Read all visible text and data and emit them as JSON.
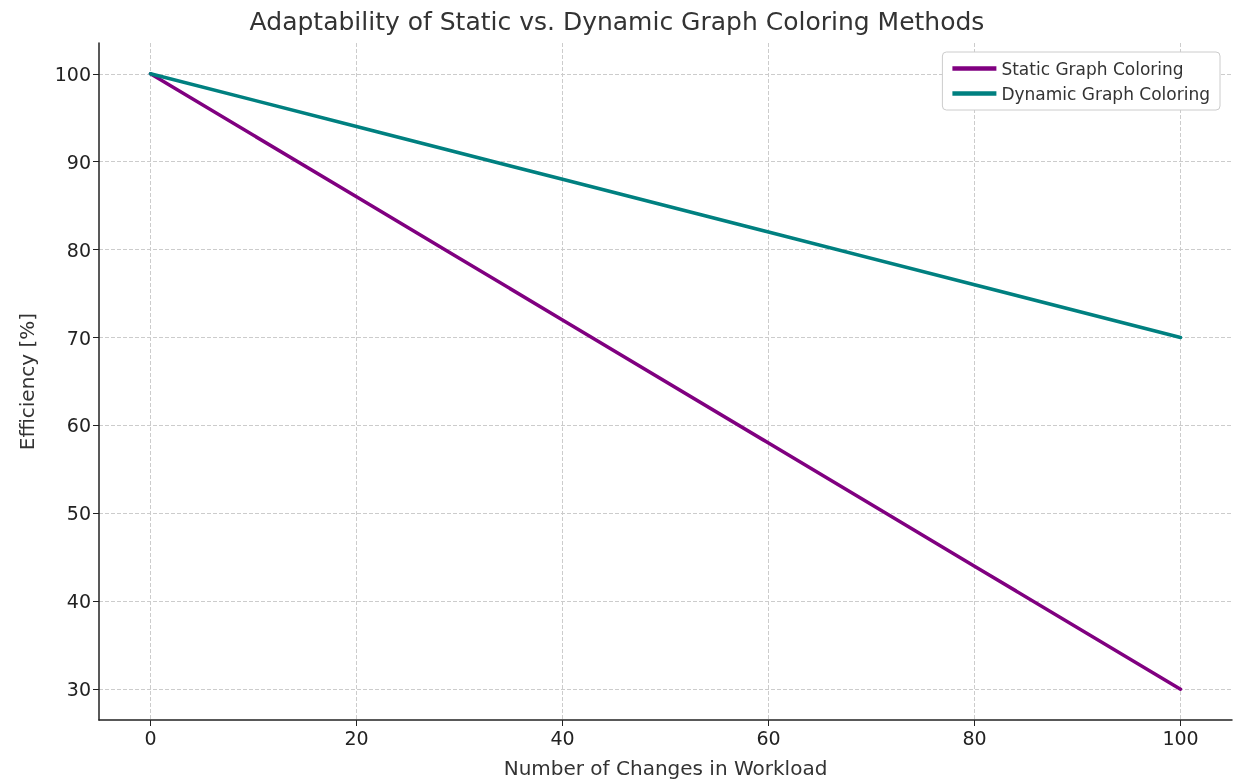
{
  "chart_data": {
    "type": "line",
    "title": "Adaptability of Static vs. Dynamic Graph Coloring Methods",
    "xlabel": "Number of Changes in Workload",
    "ylabel": "Efficiency [%]",
    "x": [
      0,
      20,
      40,
      60,
      80,
      100
    ],
    "series": [
      {
        "name": "Static Graph Coloring",
        "color": "#800080",
        "values": [
          100,
          86,
          72,
          58,
          44,
          30
        ]
      },
      {
        "name": "Dynamic Graph Coloring",
        "color": "#008080",
        "values": [
          100,
          94,
          88,
          82,
          76,
          70
        ]
      }
    ],
    "xlim": [
      -5,
      105
    ],
    "xticks": [
      0,
      20,
      40,
      60,
      80,
      100
    ],
    "ylim": [
      26.5,
      103.5
    ],
    "yticks": [
      30,
      40,
      50,
      60,
      70,
      80,
      90,
      100
    ],
    "grid": true,
    "legend": "top right",
    "marker": "none",
    "line_style": "solid"
  }
}
